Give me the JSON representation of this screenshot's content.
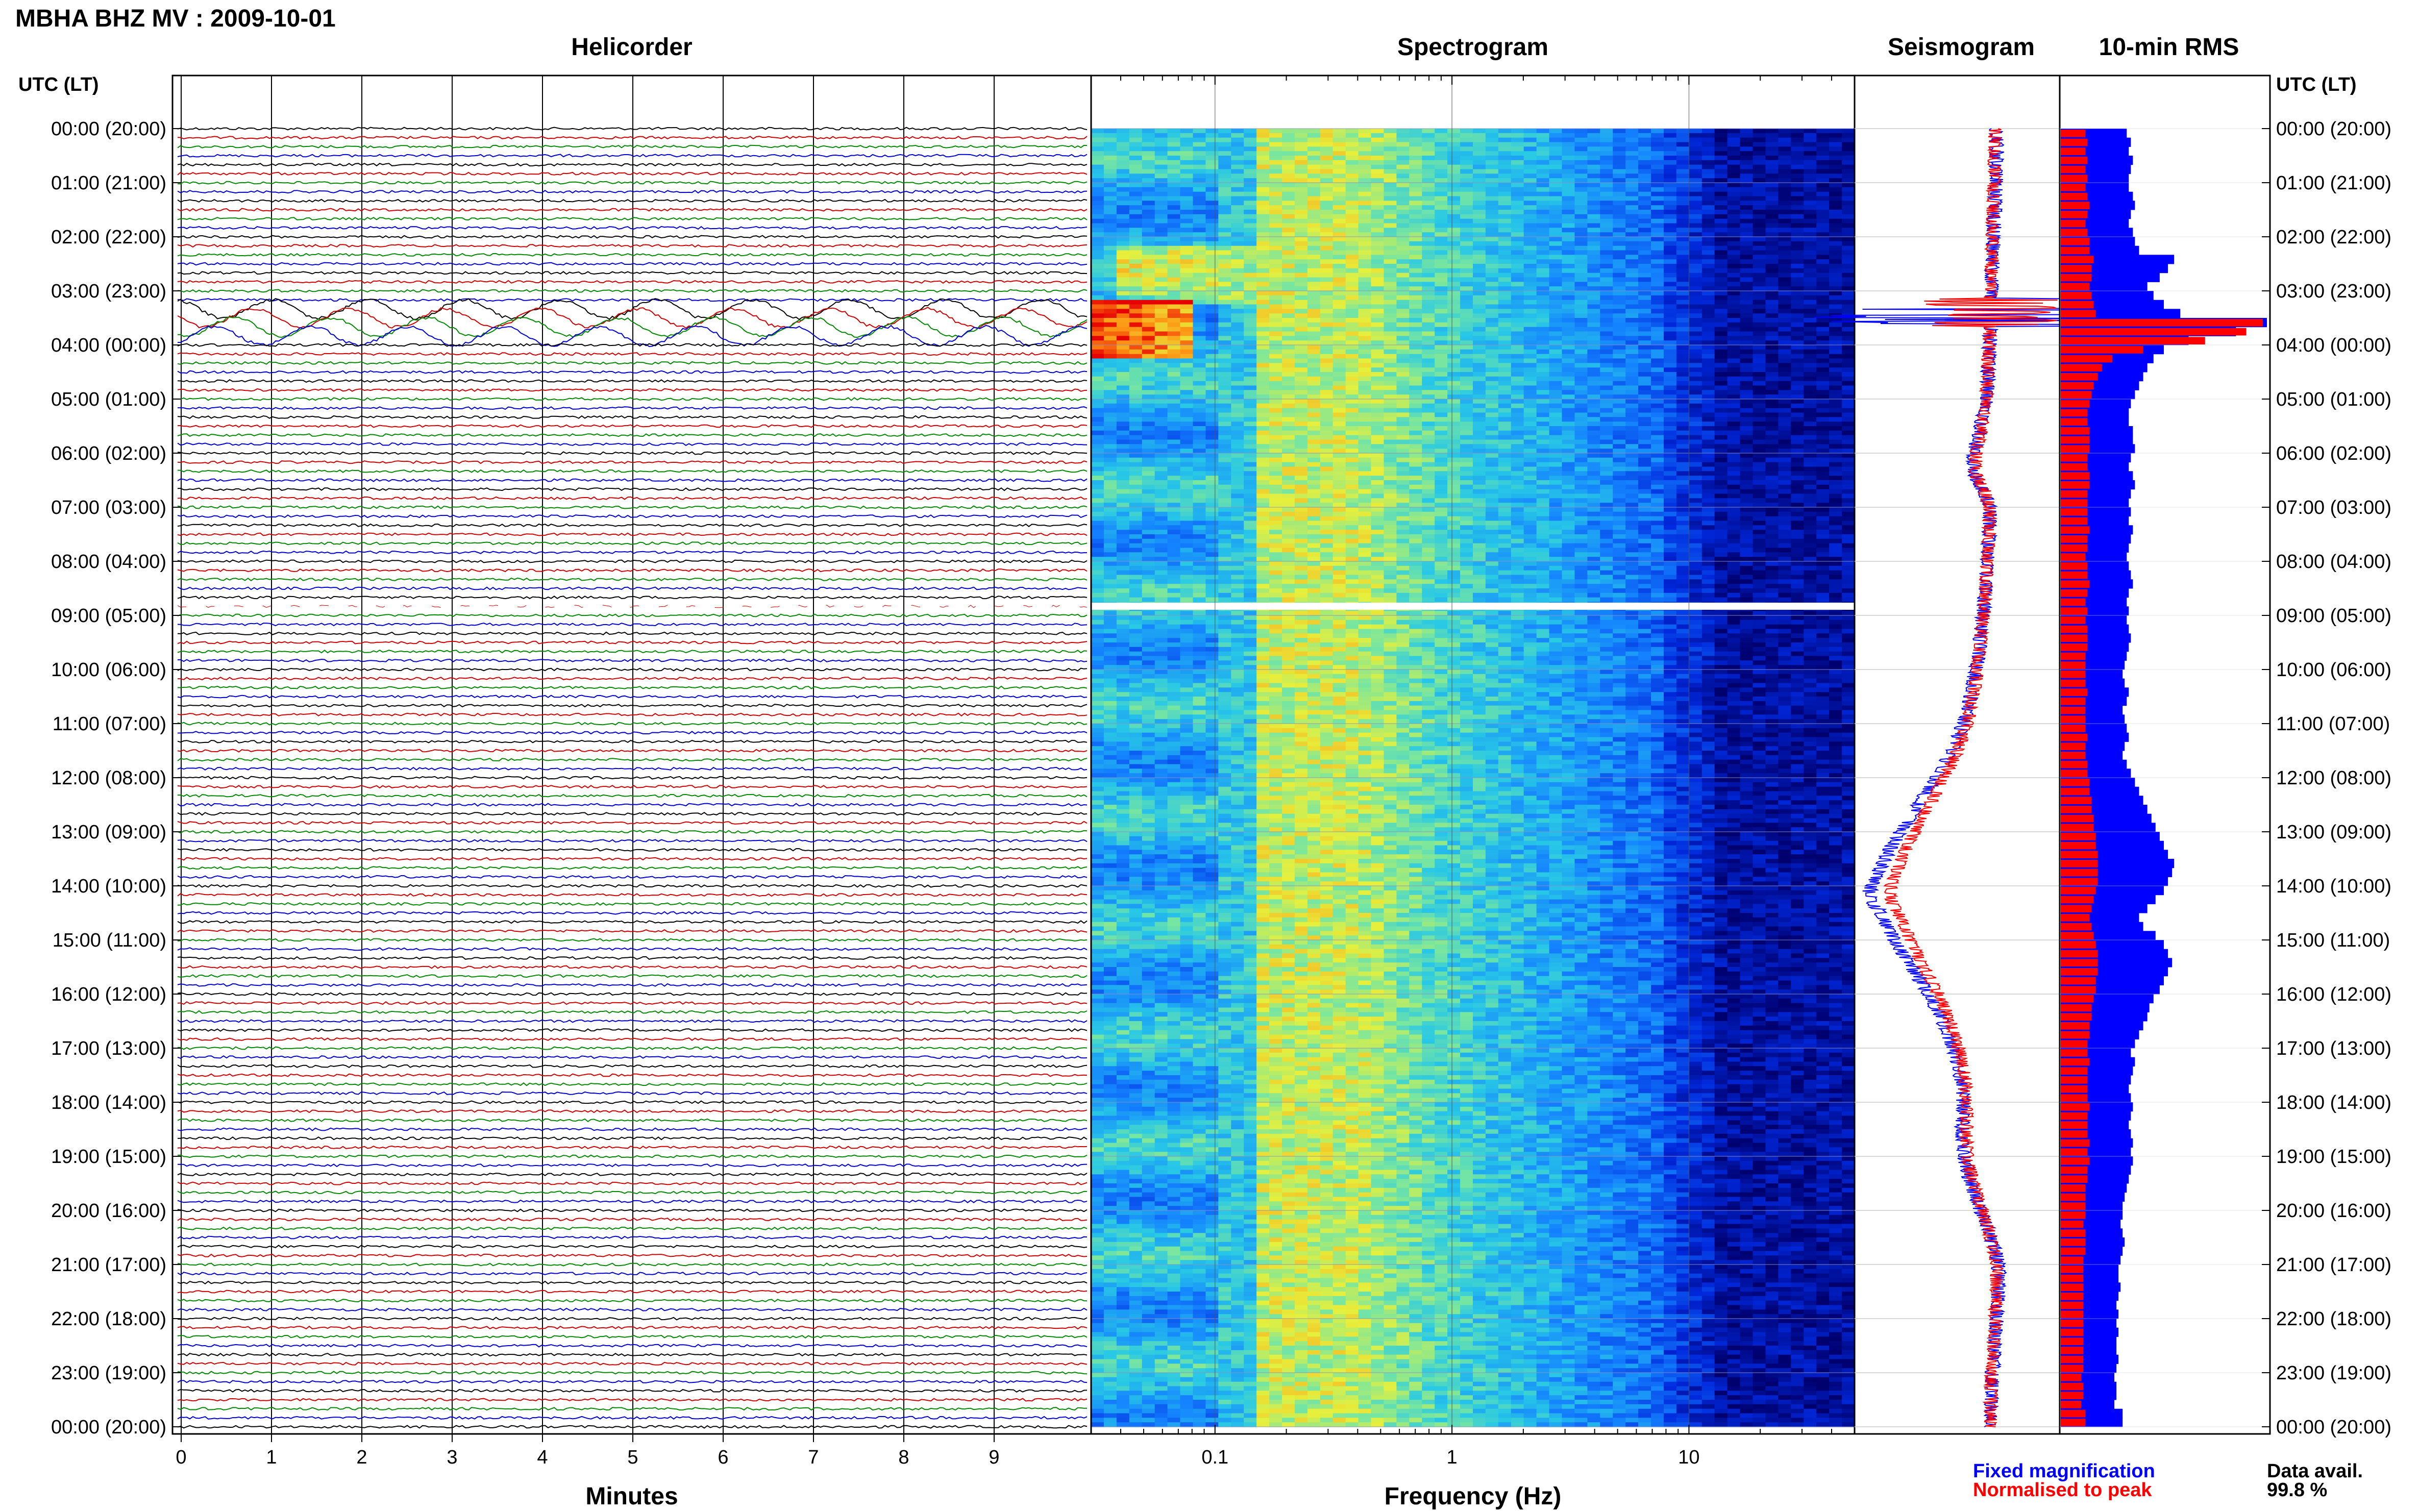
{
  "page": {
    "title": "MBHA BHZ MV : 2009-10-01",
    "utc_label_left": "UTC (LT)",
    "utc_label_right": "UTC (LT)"
  },
  "panels": {
    "helicorder": {
      "title": "Helicorder",
      "xlabel": "Minutes"
    },
    "spectrogram": {
      "title": "Spectrogram",
      "xlabel": "Frequency (Hz)"
    },
    "seismogram": {
      "title": "Seismogram"
    },
    "rms": {
      "title": "10-min RMS"
    }
  },
  "legend": {
    "fixed": "Fixed magnification",
    "normalised": "Normalised to peak",
    "fixed_color": "#0000ff",
    "normalised_color": "#ff0000"
  },
  "data_avail": {
    "label": "Data avail.",
    "value": "99.8 %"
  },
  "chart_data": [
    {
      "type": "line",
      "title": "Helicorder",
      "xlabel": "Minutes",
      "x_ticks": [
        "0",
        "1",
        "2",
        "3",
        "4",
        "5",
        "6",
        "7",
        "8",
        "9"
      ],
      "xlim": [
        0,
        10
      ],
      "y_ticks": [
        "00:00 (20:00)",
        "01:00 (21:00)",
        "02:00 (22:00)",
        "03:00 (23:00)",
        "04:00 (00:00)",
        "05:00 (01:00)",
        "06:00 (02:00)",
        "07:00 (03:00)",
        "08:00 (04:00)",
        "09:00 (05:00)",
        "10:00 (06:00)",
        "11:00 (07:00)",
        "12:00 (08:00)",
        "13:00 (09:00)",
        "14:00 (10:00)",
        "15:00 (11:00)",
        "16:00 (12:00)",
        "17:00 (13:00)",
        "18:00 (14:00)",
        "19:00 (15:00)",
        "20:00 (16:00)",
        "21:00 (17:00)",
        "22:00 (18:00)",
        "23:00 (19:00)",
        "00:00 (20:00)"
      ],
      "traces_per_hour": 6,
      "trace_colors": [
        "#000000",
        "#cc0000",
        "#008800",
        "#0000cc"
      ],
      "large_amplitude_hours": [
        3.2,
        3.9
      ],
      "gap_hour": 8.83
    },
    {
      "type": "heatmap",
      "title": "Spectrogram",
      "xlabel": "Frequency (Hz)",
      "x_scale": "log",
      "x_ticks": [
        "0.1",
        "1",
        "10"
      ],
      "x_tick_values": [
        0.1,
        1,
        10
      ],
      "xlim": [
        0.03,
        50
      ],
      "high_energy_band_hours": [
        3.1,
        4.2
      ],
      "high_energy_freq_range_hz": [
        0.03,
        0.06
      ],
      "gap_hour": 8.83
    },
    {
      "type": "line",
      "title": "Seismogram",
      "series": [
        {
          "name": "Fixed magnification",
          "color": "#0000ff"
        },
        {
          "name": "Normalised to peak",
          "color": "#ff0000"
        }
      ],
      "hours": [
        0,
        0.5,
        1,
        1.5,
        2,
        2.5,
        3,
        3.2,
        3.5,
        3.8,
        4,
        4.5,
        5,
        5.5,
        6,
        6.4,
        6.7,
        7,
        7.5,
        8,
        8.5,
        9,
        9.5,
        10,
        10.5,
        11,
        11.5,
        12,
        12.5,
        13,
        13.3,
        13.6,
        13.9,
        14.1,
        14.3,
        14.6,
        15,
        15.5,
        16,
        16.5,
        17,
        17.5,
        18,
        18.5,
        19,
        19.5,
        20,
        20.5,
        21,
        21.5,
        22,
        22.5,
        23,
        23.5,
        24
      ],
      "offset_normalised": [
        0.1,
        0.1,
        0.09,
        0.08,
        0.07,
        0.06,
        0.05,
        0.05,
        0.04,
        0.04,
        0.03,
        0.02,
        0.0,
        -0.05,
        -0.12,
        -0.12,
        -0.02,
        0.04,
        0.03,
        0.01,
        -0.01,
        -0.03,
        -0.06,
        -0.1,
        -0.15,
        -0.22,
        -0.33,
        -0.48,
        -0.65,
        -0.82,
        -0.92,
        -1.0,
        -1.07,
        -1.12,
        -1.09,
        -0.98,
        -0.88,
        -0.72,
        -0.55,
        -0.42,
        -0.32,
        -0.25,
        -0.22,
        -0.23,
        -0.22,
        -0.15,
        -0.05,
        0.05,
        0.12,
        0.12,
        0.1,
        0.08,
        0.06,
        0.05,
        0.05
      ],
      "event_hour": 3.4
    },
    {
      "type": "bar",
      "title": "10-min RMS",
      "series": [
        {
          "name": "Fixed magnification",
          "color": "#0000ff"
        },
        {
          "name": "Normalised to peak",
          "color": "#ff0000"
        }
      ],
      "bins_per_hour": 6,
      "fixed_relative": [
        0.32,
        0.34,
        0.33,
        0.35,
        0.34,
        0.33,
        0.33,
        0.35,
        0.36,
        0.34,
        0.33,
        0.35,
        0.36,
        0.38,
        0.55,
        0.52,
        0.48,
        0.42,
        0.45,
        0.5,
        0.58,
        1.0,
        0.85,
        0.62,
        0.5,
        0.45,
        0.42,
        0.4,
        0.38,
        0.36,
        0.34,
        0.33,
        0.33,
        0.35,
        0.35,
        0.36,
        0.34,
        0.33,
        0.35,
        0.36,
        0.34,
        0.33,
        0.34,
        0.33,
        0.35,
        0.34,
        0.33,
        0.32,
        0.33,
        0.34,
        0.35,
        0.33,
        0.32,
        0.33,
        0.32,
        0.33,
        0.34,
        0.33,
        0.32,
        0.31,
        0.3,
        0.31,
        0.33,
        0.32,
        0.3,
        0.31,
        0.32,
        0.33,
        0.31,
        0.3,
        0.32,
        0.34,
        0.36,
        0.38,
        0.4,
        0.42,
        0.44,
        0.46,
        0.48,
        0.5,
        0.52,
        0.55,
        0.54,
        0.52,
        0.5,
        0.46,
        0.42,
        0.38,
        0.4,
        0.46,
        0.5,
        0.52,
        0.54,
        0.52,
        0.5,
        0.48,
        0.45,
        0.43,
        0.42,
        0.4,
        0.38,
        0.36,
        0.34,
        0.36,
        0.35,
        0.34,
        0.33,
        0.34,
        0.35,
        0.34,
        0.33,
        0.34,
        0.35,
        0.34,
        0.35,
        0.34,
        0.33,
        0.32,
        0.31,
        0.3,
        0.3,
        0.29,
        0.3,
        0.31,
        0.3,
        0.29,
        0.28,
        0.28,
        0.29,
        0.28,
        0.27,
        0.28,
        0.27,
        0.28,
        0.27,
        0.27,
        0.28,
        0.27,
        0.26,
        0.27,
        0.27,
        0.26
      ],
      "normalised_relative": [
        0.12,
        0.13,
        0.12,
        0.13,
        0.12,
        0.13,
        0.12,
        0.13,
        0.14,
        0.13,
        0.12,
        0.13,
        0.14,
        0.14,
        0.16,
        0.15,
        0.15,
        0.14,
        0.15,
        0.16,
        0.17,
        0.98,
        0.9,
        0.7,
        0.4,
        0.25,
        0.2,
        0.18,
        0.16,
        0.15,
        0.14,
        0.13,
        0.13,
        0.14,
        0.14,
        0.14,
        0.13,
        0.13,
        0.14,
        0.14,
        0.13,
        0.13,
        0.13,
        0.13,
        0.14,
        0.13,
        0.13,
        0.12,
        0.13,
        0.13,
        0.14,
        0.13,
        0.12,
        0.13,
        0.12,
        0.13,
        0.13,
        0.13,
        0.12,
        0.12,
        0.12,
        0.12,
        0.13,
        0.12,
        0.12,
        0.12,
        0.12,
        0.13,
        0.12,
        0.12,
        0.13,
        0.13,
        0.14,
        0.14,
        0.15,
        0.15,
        0.16,
        0.16,
        0.17,
        0.17,
        0.18,
        0.18,
        0.18,
        0.18,
        0.17,
        0.16,
        0.15,
        0.14,
        0.15,
        0.16,
        0.17,
        0.18,
        0.18,
        0.18,
        0.17,
        0.17,
        0.16,
        0.15,
        0.15,
        0.14,
        0.14,
        0.13,
        0.13,
        0.14,
        0.13,
        0.13,
        0.13,
        0.13,
        0.14,
        0.13,
        0.13,
        0.13,
        0.14,
        0.13,
        0.14,
        0.13,
        0.13,
        0.12,
        0.12,
        0.12,
        0.12,
        0.11,
        0.12,
        0.12,
        0.12,
        0.11,
        0.11,
        0.11,
        0.11,
        0.11,
        0.11,
        0.11,
        0.11,
        0.11,
        0.11,
        0.11,
        0.11,
        0.11,
        0.1,
        0.11,
        0.11,
        0.1
      ]
    }
  ]
}
